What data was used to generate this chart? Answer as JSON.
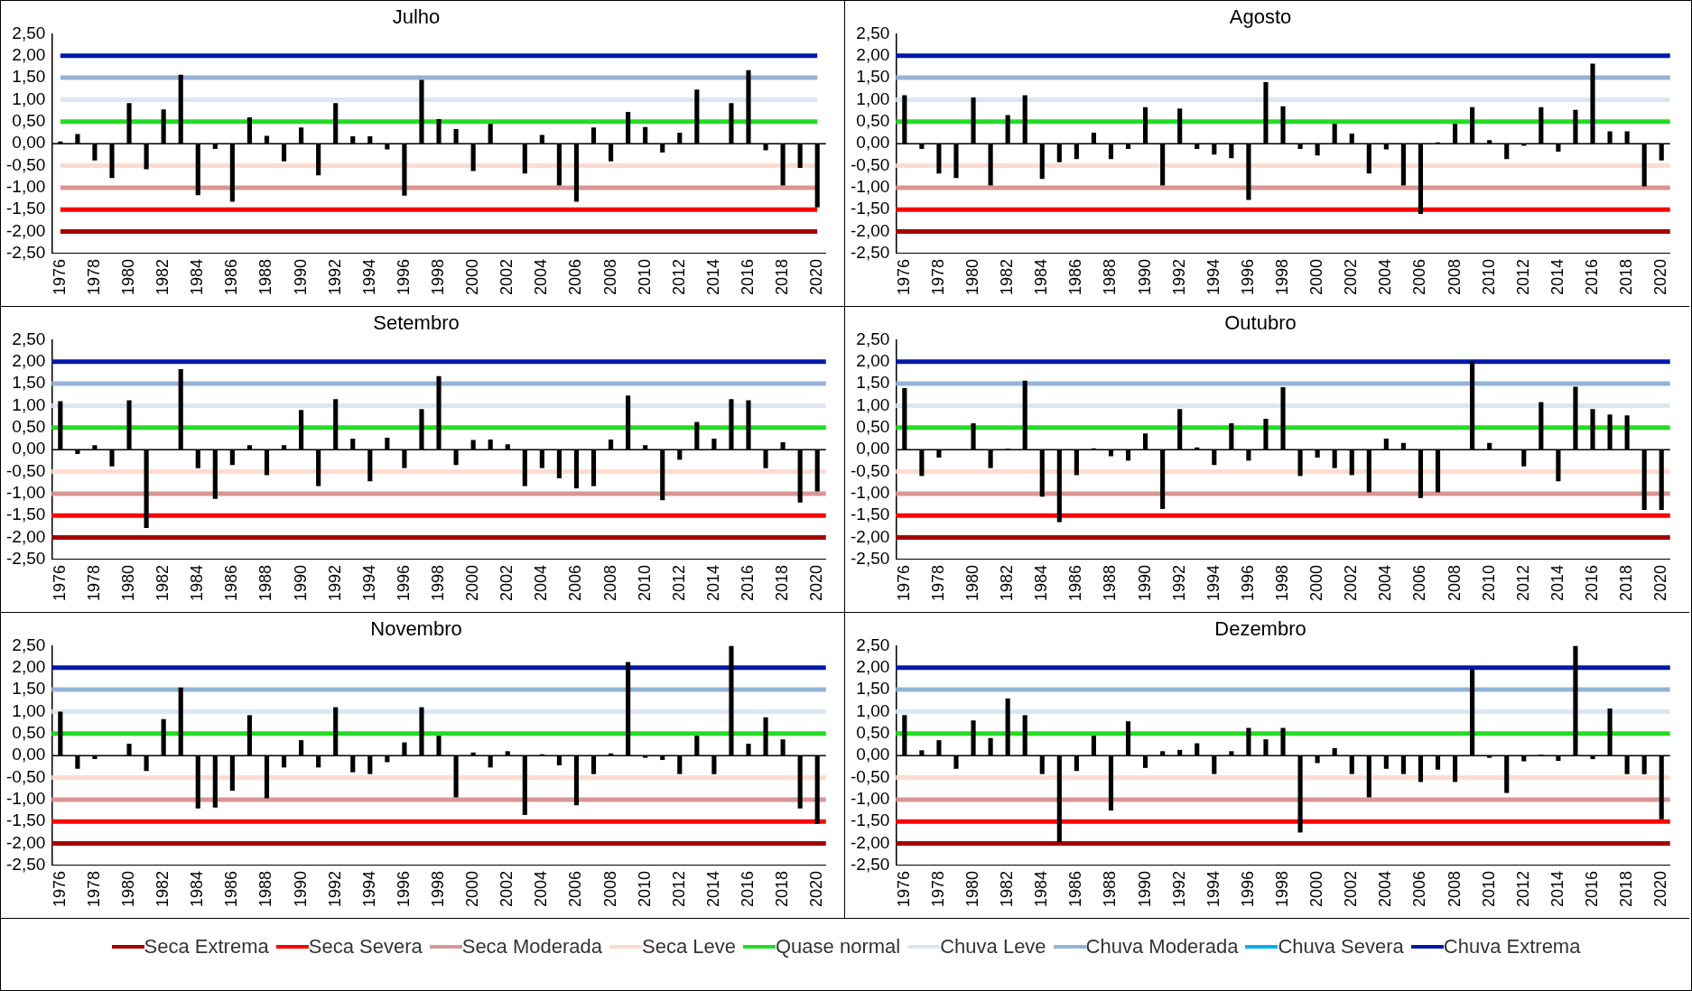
{
  "chart_data": [
    {
      "type": "bar",
      "title": "Julho",
      "categories": [
        "1976",
        null,
        "1978",
        null,
        "1980",
        null,
        "1982",
        null,
        "1984",
        null,
        "1986",
        null,
        "1988",
        null,
        "1990",
        null,
        "1992",
        null,
        "1994",
        null,
        "1996",
        null,
        "1998",
        null,
        "2000",
        null,
        "2002",
        null,
        "2004",
        null,
        "2006",
        null,
        "2008",
        null,
        "2010",
        null,
        "2012",
        null,
        "2014",
        null,
        "2016",
        null,
        "2018",
        null,
        "2020"
      ],
      "series": [
        {
          "color": "#000000",
          "values": [
            0.05,
            0.22,
            -0.38,
            -0.78,
            0.92,
            -0.58,
            0.78,
            1.57,
            -1.17,
            -0.12,
            -1.32,
            0.6,
            0.18,
            -0.4,
            0.37,
            -0.72,
            0.92,
            0.17,
            0.17,
            -0.13,
            -1.18,
            1.45,
            0.56,
            0.33,
            -0.62,
            0.45,
            0,
            -0.68,
            0.2,
            -0.95,
            -1.32,
            0.37,
            -0.4,
            0.72,
            0.38,
            -0.2,
            0.25,
            1.23,
            0,
            0.92,
            1.67,
            -0.15,
            -0.95,
            -0.55,
            -1.45
          ]
        },
        {
          "type": "line",
          "name": "Seca Extrema",
          "color": "#a50000",
          "values": [
            -2,
            -2,
            -2,
            -2,
            -2,
            -2,
            -2,
            -2,
            -2,
            -2,
            -2,
            -2,
            -2,
            -2,
            -2,
            -2,
            -2,
            -2,
            -2,
            -2,
            -2,
            -2,
            -2,
            -2,
            -2,
            -2,
            -2,
            -2,
            -2,
            -2,
            -2,
            -2,
            -2,
            -2,
            -2,
            -2,
            -2,
            -2,
            -2,
            -2,
            -2,
            -2,
            -2,
            -2,
            -2
          ]
        },
        {
          "type": "line",
          "name": "Seca Severa",
          "color": "#ff0000",
          "values": [
            -1.5,
            -1.5,
            -1.5,
            -1.5,
            -1.5,
            -1.5,
            -1.5,
            -1.5,
            -1.5,
            -1.5,
            -1.5,
            -1.5,
            -1.5,
            -1.5,
            -1.5,
            -1.5,
            -1.5,
            -1.5,
            -1.5,
            -1.5,
            -1.5,
            -1.5,
            -1.5,
            -1.5,
            -1.5,
            -1.5,
            -1.5,
            -1.5,
            -1.5,
            -1.5,
            -1.5,
            -1.5,
            -1.5,
            -1.5,
            -1.5,
            -1.5,
            -1.5,
            -1.5,
            -1.5,
            -1.5,
            -1.5,
            -1.5,
            -1.5,
            -1.5,
            -1.5
          ]
        },
        {
          "type": "line",
          "name": "Seca Moderada",
          "color": "#d99694",
          "values": [
            -1,
            -1,
            -1,
            -1,
            -1,
            -1,
            -1,
            -1,
            -1,
            -1,
            -1,
            -1,
            -1,
            -1,
            -1,
            -1,
            -1,
            -1,
            -1,
            -1,
            -1,
            -1,
            -1,
            -1,
            -1,
            -1,
            -1,
            -1,
            -1,
            -1,
            -1,
            -1,
            -1,
            -1,
            -1,
            -1,
            -1,
            -1,
            -1,
            -1,
            -1,
            -1,
            -1,
            -1,
            -1
          ]
        },
        {
          "type": "line",
          "name": "Seca Leve",
          "color": "#fcdcd0",
          "values": [
            -0.5,
            -0.5,
            -0.5,
            -0.5,
            -0.5,
            -0.5,
            -0.5,
            -0.5,
            -0.5,
            -0.5,
            -0.5,
            -0.5,
            -0.5,
            -0.5,
            -0.5,
            -0.5,
            -0.5,
            -0.5,
            -0.5,
            -0.5,
            -0.5,
            -0.5,
            -0.5,
            -0.5,
            -0.5,
            -0.5,
            -0.5,
            -0.5,
            -0.5,
            -0.5,
            -0.5,
            -0.5,
            -0.5,
            -0.5,
            -0.5,
            -0.5,
            -0.5,
            -0.5,
            -0.5,
            -0.5,
            -0.5,
            -0.5,
            -0.5,
            -0.5,
            -0.5
          ]
        },
        {
          "type": "line",
          "name": "Quase normal",
          "color": "#22dd22",
          "values": [
            0.5,
            0.5,
            0.5,
            0.5,
            0.5,
            0.5,
            0.5,
            0.5,
            0.5,
            0.5,
            0.5,
            0.5,
            0.5,
            0.5,
            0.5,
            0.5,
            0.5,
            0.5,
            0.5,
            0.5,
            0.5,
            0.5,
            0.5,
            0.5,
            0.5,
            0.5,
            0.5,
            0.5,
            0.5,
            0.5,
            0.5,
            0.5,
            0.5,
            0.5,
            0.5,
            0.5,
            0.5,
            0.5,
            0.5,
            0.5,
            0.5,
            0.5,
            0.5,
            0.5,
            0.5
          ]
        },
        {
          "type": "line",
          "name": "Chuva Leve",
          "color": "#dce6f2",
          "values": [
            1,
            1,
            1,
            1,
            1,
            1,
            1,
            1,
            1,
            1,
            1,
            1,
            1,
            1,
            1,
            1,
            1,
            1,
            1,
            1,
            1,
            1,
            1,
            1,
            1,
            1,
            1,
            1,
            1,
            1,
            1,
            1,
            1,
            1,
            1,
            1,
            1,
            1,
            1,
            1,
            1,
            1,
            1,
            1,
            1
          ]
        },
        {
          "type": "line",
          "name": "Chuva Moderada",
          "color": "#95b3d7",
          "values": [
            1.5,
            1.5,
            1.5,
            1.5,
            1.5,
            1.5,
            1.5,
            1.5,
            1.5,
            1.5,
            1.5,
            1.5,
            1.5,
            1.5,
            1.5,
            1.5,
            1.5,
            1.5,
            1.5,
            1.5,
            1.5,
            1.5,
            1.5,
            1.5,
            1.5,
            1.5,
            1.5,
            1.5,
            1.5,
            1.5,
            1.5,
            1.5,
            1.5,
            1.5,
            1.5,
            1.5,
            1.5,
            1.5,
            1.5,
            1.5,
            1.5,
            1.5,
            1.5,
            1.5,
            1.5
          ]
        },
        {
          "type": "line",
          "name": "Chuva Severa",
          "color": "#00b0f0",
          "values": [
            null,
            null,
            null,
            null,
            null,
            null,
            null,
            null,
            null,
            null,
            null,
            null,
            null,
            null,
            null,
            null,
            null,
            null,
            null,
            null,
            null,
            null,
            null,
            null,
            null,
            null,
            null,
            null,
            null,
            null,
            null,
            null,
            null,
            null,
            null,
            null,
            null,
            null,
            null,
            null,
            null,
            null,
            null,
            null,
            null
          ]
        },
        {
          "type": "line",
          "name": "Chuva Extrema",
          "color": "#0019a8",
          "values": [
            2,
            2,
            2,
            2,
            2,
            2,
            2,
            2,
            2,
            2,
            2,
            2,
            2,
            2,
            2,
            2,
            2,
            2,
            2,
            2,
            2,
            2,
            2,
            2,
            2,
            2,
            2,
            2,
            2,
            2,
            2,
            2,
            2,
            2,
            2,
            2,
            2,
            2,
            2,
            2,
            2,
            2,
            2,
            2,
            2
          ]
        }
      ],
      "ylim": [
        -2.5,
        2.5
      ],
      "yticks": [
        {
          "value": 2.5,
          "label": "2,50"
        },
        {
          "value": 2,
          "label": "2,00"
        },
        {
          "value": 1.5,
          "label": "1,50"
        },
        {
          "value": 1,
          "label": "1,00"
        },
        {
          "value": 0.5,
          "label": "0,50"
        },
        {
          "value": 0,
          "label": "0,00"
        },
        {
          "value": -0.5,
          "label": "-0,50"
        },
        {
          "value": -1,
          "label": "-1,00"
        },
        {
          "value": -1.5,
          "label": "-1,50"
        },
        {
          "value": -2,
          "label": "-2,00"
        },
        {
          "value": -2.5,
          "label": "-2,50"
        }
      ],
      "legend": "bottom"
    },
    {
      "type": "bar",
      "title": "Agosto",
      "categories": [
        "1976",
        null,
        "1978",
        null,
        "1980",
        null,
        "1982",
        null,
        "1984",
        null,
        "1986",
        null,
        "1988",
        null,
        "1990",
        null,
        "1992",
        null,
        "1994",
        null,
        "1996",
        null,
        "1998",
        null,
        "2000",
        null,
        "2002",
        null,
        "2004",
        null,
        "2006",
        null,
        "2008",
        null,
        "2010",
        null,
        "2012",
        null,
        "2014",
        null,
        "2016",
        null,
        "2018",
        null,
        "2020"
      ],
      "series": [
        {
          "color": "#000000",
          "values": [
            1.1,
            -0.12,
            -0.68,
            -0.78,
            1.05,
            -0.95,
            0.65,
            1.1,
            -0.8,
            -0.42,
            -0.35,
            0.25,
            -0.35,
            -0.12,
            0.83,
            -0.95,
            0.8,
            -0.12,
            -0.25,
            -0.33,
            -1.28,
            1.4,
            0.85,
            -0.12,
            -0.27,
            0.45,
            0.23,
            -0.68,
            -0.13,
            -0.95,
            -1.6,
            0.03,
            0.45,
            0.83,
            0.08,
            -0.35,
            -0.05,
            0.83,
            -0.18,
            0.77,
            1.82,
            0.28,
            0.28,
            -0.97,
            -0.38
          ]
        }
      ],
      "ylim": [
        -2.5,
        2.5
      ],
      "yticks": [
        {
          "value": 2.5,
          "label": "2,50"
        },
        {
          "value": 2,
          "label": "2,00"
        },
        {
          "value": 1.5,
          "label": "1,50"
        },
        {
          "value": 1,
          "label": "1,00"
        },
        {
          "value": 0.5,
          "label": "0,50"
        },
        {
          "value": 0,
          "label": "0,00"
        },
        {
          "value": -0.5,
          "label": "-0,50"
        },
        {
          "value": -1,
          "label": "-1,00"
        },
        {
          "value": -1.5,
          "label": "-1,50"
        },
        {
          "value": -2,
          "label": "-2,00"
        },
        {
          "value": -2.5,
          "label": "-2,50"
        }
      ],
      "ref_lines": [
        {
          "axis": "y",
          "value": -2,
          "color": "#a50000"
        },
        {
          "axis": "y",
          "value": -1.5,
          "color": "#ff0000"
        },
        {
          "axis": "y",
          "value": -1,
          "color": "#d99694"
        },
        {
          "axis": "y",
          "value": -0.5,
          "color": "#fcdcd0"
        },
        {
          "axis": "y",
          "value": 0.5,
          "color": "#22dd22"
        },
        {
          "axis": "y",
          "value": 1,
          "color": "#dce6f2"
        },
        {
          "axis": "y",
          "value": 1.5,
          "color": "#95b3d7"
        },
        {
          "axis": "y",
          "value": 2,
          "color": "#0019a8"
        }
      ]
    },
    {
      "type": "bar",
      "title": "Setembro",
      "categories": [
        "1976",
        null,
        "1978",
        null,
        "1980",
        null,
        "1982",
        null,
        "1984",
        null,
        "1986",
        null,
        "1988",
        null,
        "1990",
        null,
        "1992",
        null,
        "1994",
        null,
        "1996",
        null,
        "1998",
        null,
        "2000",
        null,
        "2002",
        null,
        "2004",
        null,
        "2006",
        null,
        "2008",
        null,
        "2010",
        null,
        "2012",
        null,
        "2014",
        null,
        "2016",
        null,
        "2018",
        null,
        "2020"
      ],
      "series": [
        {
          "color": "#000000",
          "values": [
            1.1,
            -0.1,
            0.1,
            -0.38,
            1.12,
            -1.78,
            0,
            1.83,
            -0.42,
            -1.12,
            -0.35,
            0.1,
            -0.58,
            0.1,
            0.9,
            -0.83,
            1.15,
            0.25,
            -0.72,
            0.27,
            -0.42,
            0.92,
            1.67,
            -0.35,
            0.22,
            0.23,
            0.12,
            -0.83,
            -0.42,
            -0.65,
            -0.88,
            -0.83,
            0.23,
            1.23,
            0.1,
            -1.15,
            -0.23,
            0.63,
            0.25,
            1.15,
            1.12,
            -0.42,
            0.17,
            -1.2,
            -0.95
          ]
        }
      ],
      "ylim": [
        -2.5,
        2.5
      ],
      "yticks": [
        {
          "value": 2.5,
          "label": "2,50"
        },
        {
          "value": 2,
          "label": "2,00"
        },
        {
          "value": 1.5,
          "label": "1,50"
        },
        {
          "value": 1,
          "label": "1,00"
        },
        {
          "value": 0.5,
          "label": "0,50"
        },
        {
          "value": 0,
          "label": "0,00"
        },
        {
          "value": -0.5,
          "label": "-0,50"
        },
        {
          "value": -1,
          "label": "-1,00"
        },
        {
          "value": -1.5,
          "label": "-1,50"
        },
        {
          "value": -2,
          "label": "-2,00"
        },
        {
          "value": -2.5,
          "label": "-2,50"
        }
      ],
      "ref_lines": [
        {
          "axis": "y",
          "value": -2,
          "color": "#a50000"
        },
        {
          "axis": "y",
          "value": -1.5,
          "color": "#ff0000"
        },
        {
          "axis": "y",
          "value": -1,
          "color": "#d99694"
        },
        {
          "axis": "y",
          "value": -0.5,
          "color": "#fcdcd0"
        },
        {
          "axis": "y",
          "value": 0.5,
          "color": "#22dd22"
        },
        {
          "axis": "y",
          "value": 1,
          "color": "#dce6f2"
        },
        {
          "axis": "y",
          "value": 1.5,
          "color": "#95b3d7"
        },
        {
          "axis": "y",
          "value": 2,
          "color": "#0019a8"
        }
      ]
    },
    {
      "type": "bar",
      "title": "Outubro",
      "categories": [
        "1976",
        null,
        "1978",
        null,
        "1980",
        null,
        "1982",
        null,
        "1984",
        null,
        "1986",
        null,
        "1988",
        null,
        "1990",
        null,
        "1992",
        null,
        "1994",
        null,
        "1996",
        null,
        "1998",
        null,
        "2000",
        null,
        "2002",
        null,
        "2004",
        null,
        "2006",
        null,
        "2008",
        null,
        "2010",
        null,
        "2012",
        null,
        "2014",
        null,
        "2016",
        null,
        "2018",
        null,
        "2020"
      ],
      "series": [
        {
          "color": "#000000",
          "values": [
            1.4,
            -0.6,
            -0.18,
            0,
            0.6,
            -0.42,
            0.02,
            1.57,
            -1.07,
            -1.65,
            -0.58,
            0.03,
            -0.15,
            -0.25,
            0.37,
            -1.35,
            0.92,
            0.05,
            -0.35,
            0.6,
            -0.25,
            0.7,
            1.42,
            -0.6,
            -0.18,
            -0.42,
            -0.58,
            -0.97,
            0.25,
            0.15,
            -1.1,
            -0.97,
            0,
            2.0,
            0.15,
            0,
            -0.38,
            1.08,
            -0.72,
            1.43,
            0.92,
            0.8,
            0.78,
            -1.37,
            -1.37
          ]
        }
      ],
      "ylim": [
        -2.5,
        2.5
      ],
      "yticks": [
        {
          "value": 2.5,
          "label": "2,50"
        },
        {
          "value": 2,
          "label": "2,00"
        },
        {
          "value": 1.5,
          "label": "1,50"
        },
        {
          "value": 1,
          "label": "1,00"
        },
        {
          "value": 0.5,
          "label": "0,50"
        },
        {
          "value": 0,
          "label": "0,00"
        },
        {
          "value": -0.5,
          "label": "-0,50"
        },
        {
          "value": -1,
          "label": "-1,00"
        },
        {
          "value": -1.5,
          "label": "-1,50"
        },
        {
          "value": -2,
          "label": "-2,00"
        },
        {
          "value": -2.5,
          "label": "-2,50"
        }
      ],
      "ref_lines": [
        {
          "axis": "y",
          "value": -2,
          "color": "#a50000"
        },
        {
          "axis": "y",
          "value": -1.5,
          "color": "#ff0000"
        },
        {
          "axis": "y",
          "value": -1,
          "color": "#d99694"
        },
        {
          "axis": "y",
          "value": -0.5,
          "color": "#fcdcd0"
        },
        {
          "axis": "y",
          "value": 0.5,
          "color": "#22dd22"
        },
        {
          "axis": "y",
          "value": 1,
          "color": "#dce6f2"
        },
        {
          "axis": "y",
          "value": 1.5,
          "color": "#95b3d7"
        },
        {
          "axis": "y",
          "value": 2,
          "color": "#0019a8"
        }
      ]
    },
    {
      "type": "bar",
      "title": "Novembro",
      "categories": [
        "1976",
        null,
        "1978",
        null,
        "1980",
        null,
        "1982",
        null,
        "1984",
        null,
        "1986",
        null,
        "1988",
        null,
        "1990",
        null,
        "1992",
        null,
        "1994",
        null,
        "1996",
        null,
        "1998",
        null,
        "2000",
        null,
        "2002",
        null,
        "2004",
        null,
        "2006",
        null,
        "2008",
        null,
        "2010",
        null,
        "2012",
        null,
        "2014",
        null,
        "2016",
        null,
        "2018",
        null,
        "2020"
      ],
      "series": [
        {
          "color": "#000000",
          "values": [
            1.0,
            -0.3,
            -0.08,
            0,
            0.27,
            -0.35,
            0.83,
            1.55,
            -1.2,
            -1.18,
            -0.8,
            0.92,
            -0.97,
            -0.27,
            0.35,
            -0.27,
            1.1,
            -0.38,
            -0.42,
            -0.15,
            0.3,
            1.1,
            0.45,
            -0.95,
            0.07,
            -0.27,
            0.1,
            -1.35,
            0.03,
            -0.22,
            -1.13,
            -0.42,
            0.05,
            2.13,
            -0.05,
            -0.1,
            -0.42,
            0.45,
            -0.42,
            2.5,
            0.27,
            0.87,
            0.37,
            -1.2,
            -1.55
          ]
        }
      ],
      "ylim": [
        -2.5,
        2.5
      ],
      "yticks": [
        {
          "value": 2.5,
          "label": "2,50"
        },
        {
          "value": 2,
          "label": "2,00"
        },
        {
          "value": 1.5,
          "label": "1,50"
        },
        {
          "value": 1,
          "label": "1,00"
        },
        {
          "value": 0.5,
          "label": "0,50"
        },
        {
          "value": 0,
          "label": "0,00"
        },
        {
          "value": -0.5,
          "label": "-0,50"
        },
        {
          "value": -1,
          "label": "-1,00"
        },
        {
          "value": -1.5,
          "label": "-1,50"
        },
        {
          "value": -2,
          "label": "-2,00"
        },
        {
          "value": -2.5,
          "label": "-2,50"
        }
      ],
      "ref_lines": [
        {
          "axis": "y",
          "value": -2,
          "color": "#a50000"
        },
        {
          "axis": "y",
          "value": -1.5,
          "color": "#ff0000"
        },
        {
          "axis": "y",
          "value": -1,
          "color": "#d99694"
        },
        {
          "axis": "y",
          "value": -0.5,
          "color": "#fcdcd0"
        },
        {
          "axis": "y",
          "value": 0.5,
          "color": "#22dd22"
        },
        {
          "axis": "y",
          "value": 1,
          "color": "#dce6f2"
        },
        {
          "axis": "y",
          "value": 1.5,
          "color": "#95b3d7"
        },
        {
          "axis": "y",
          "value": 2,
          "color": "#0019a8"
        }
      ]
    },
    {
      "type": "bar",
      "title": "Dezembro",
      "categories": [
        "1976",
        null,
        "1978",
        null,
        "1980",
        null,
        "1982",
        null,
        "1984",
        null,
        "1986",
        null,
        "1988",
        null,
        "1990",
        null,
        "1992",
        null,
        "1994",
        null,
        "1996",
        null,
        "1998",
        null,
        "2000",
        null,
        "2002",
        null,
        "2004",
        null,
        "2006",
        null,
        "2008",
        null,
        "2010",
        null,
        "2012",
        null,
        "2014",
        null,
        "2016",
        null,
        "2018",
        null,
        "2020"
      ],
      "series": [
        {
          "color": "#000000",
          "values": [
            0.92,
            0.12,
            0.35,
            -0.3,
            0.8,
            0.4,
            1.3,
            0.92,
            -0.42,
            -1.97,
            -0.35,
            0.45,
            -1.25,
            0.78,
            -0.28,
            0.1,
            0.13,
            0.28,
            -0.42,
            0.1,
            0.63,
            0.37,
            0.63,
            -1.75,
            -0.17,
            0.17,
            -0.42,
            -0.95,
            -0.3,
            -0.42,
            -0.6,
            -0.32,
            -0.6,
            1.97,
            -0.05,
            -0.85,
            -0.13,
            0.02,
            -0.12,
            2.5,
            -0.08,
            1.07,
            -0.42,
            -0.42,
            -1.45
          ]
        }
      ],
      "ylim": [
        -2.5,
        2.5
      ],
      "yticks": [
        {
          "value": 2.5,
          "label": "2,50"
        },
        {
          "value": 2,
          "label": "2,00"
        },
        {
          "value": 1.5,
          "label": "1,50"
        },
        {
          "value": 1,
          "label": "1,00"
        },
        {
          "value": 0.5,
          "label": "0,50"
        },
        {
          "value": 0,
          "label": "0,00"
        },
        {
          "value": -0.5,
          "label": "-0,50"
        },
        {
          "value": -1,
          "label": "-1,00"
        },
        {
          "value": -1.5,
          "label": "-1,50"
        },
        {
          "value": -2,
          "label": "-2,00"
        },
        {
          "value": -2.5,
          "label": "-2,50"
        }
      ],
      "ref_lines": [
        {
          "axis": "y",
          "value": -2,
          "color": "#a50000"
        },
        {
          "axis": "y",
          "value": -1.5,
          "color": "#ff0000"
        },
        {
          "axis": "y",
          "value": -1,
          "color": "#d99694"
        },
        {
          "axis": "y",
          "value": -0.5,
          "color": "#fcdcd0"
        },
        {
          "axis": "y",
          "value": 0.5,
          "color": "#22dd22"
        },
        {
          "axis": "y",
          "value": 1,
          "color": "#dce6f2"
        },
        {
          "axis": "y",
          "value": 1.5,
          "color": "#95b3d7"
        },
        {
          "axis": "y",
          "value": 2,
          "color": "#0019a8"
        }
      ]
    }
  ]
}
